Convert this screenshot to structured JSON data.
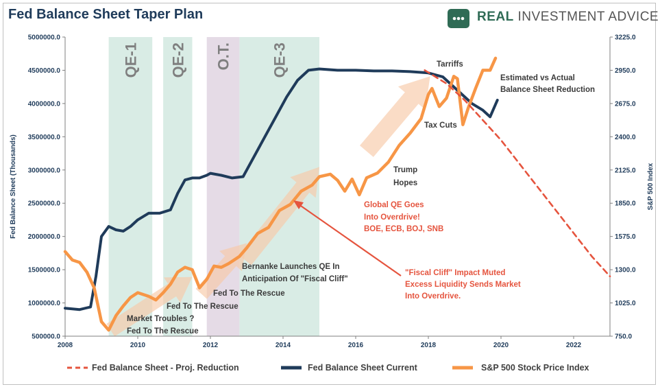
{
  "header": {
    "title": "Fed Balance Sheet Taper Plan",
    "brand_prefix": "REAL",
    "brand_rest": "INVESTMENT ADVICE"
  },
  "chart_data": {
    "type": "line",
    "xlabel": "",
    "ylabel": "Fed Balance Sheet (Thousands)",
    "y2label": "S&P 500 Index",
    "xlim": [
      2008,
      2023
    ],
    "ylim": [
      500000,
      5000000
    ],
    "y2lim": [
      750,
      3225
    ],
    "x_ticks": [
      "2008",
      "2010",
      "2012",
      "2014",
      "2016",
      "2018",
      "2020",
      "2022"
    ],
    "y_ticks": [
      "500000.0",
      "1000000.0",
      "1500000.0",
      "2000000.0",
      "2500000.0",
      "3000000.0",
      "3500000.0",
      "4000000.0",
      "4500000.0",
      "5000000.0"
    ],
    "y2_ticks": [
      "750.0",
      "1025.0",
      "1300.0",
      "1575.0",
      "1850.0",
      "2125.0",
      "2400.0",
      "2675.0",
      "2950.0",
      "3225.0"
    ],
    "shaded_periods": [
      {
        "label": "QE-1",
        "start": 2009.2,
        "end": 2010.4,
        "color": "#d9ece5"
      },
      {
        "label": "QE-2",
        "start": 2010.7,
        "end": 2011.5,
        "color": "#d9ece5"
      },
      {
        "label": "O.T.",
        "start": 2011.9,
        "end": 2012.8,
        "color": "#e5dbe6"
      },
      {
        "label": "QE-3",
        "start": 2012.8,
        "end": 2015.0,
        "color": "#d9ece5"
      }
    ],
    "series": [
      {
        "name": "Fed Balance Sheet - Proj. Reduction",
        "axis": "left",
        "color": "#e5543e",
        "style": "dashed",
        "x": [
          2017.9,
          2018.5,
          2019.0,
          2019.5,
          2020.0,
          2020.5,
          2021.0,
          2021.5,
          2022.0,
          2022.5,
          2023.0
        ],
        "y": [
          4500000,
          4300000,
          4050000,
          3750000,
          3450000,
          3100000,
          2750000,
          2400000,
          2050000,
          1700000,
          1400000
        ]
      },
      {
        "name": "Fed Balance Sheet Current",
        "axis": "left",
        "color": "#1f3b5a",
        "style": "solid",
        "x": [
          2008.0,
          2008.4,
          2008.7,
          2008.85,
          2009.0,
          2009.2,
          2009.4,
          2009.6,
          2009.8,
          2010.0,
          2010.3,
          2010.6,
          2010.9,
          2011.1,
          2011.3,
          2011.5,
          2011.7,
          2011.9,
          2012.0,
          2012.3,
          2012.6,
          2012.9,
          2013.2,
          2013.5,
          2013.8,
          2014.1,
          2014.4,
          2014.7,
          2015.0,
          2015.5,
          2016.0,
          2016.5,
          2017.0,
          2017.5,
          2018.0,
          2018.4,
          2018.8,
          2019.2,
          2019.5,
          2019.7,
          2019.9
        ],
        "y": [
          920000,
          900000,
          940000,
          1400000,
          2000000,
          2150000,
          2100000,
          2080000,
          2150000,
          2250000,
          2350000,
          2350000,
          2400000,
          2650000,
          2850000,
          2880000,
          2880000,
          2920000,
          2950000,
          2920000,
          2880000,
          2900000,
          3200000,
          3500000,
          3800000,
          4100000,
          4350000,
          4500000,
          4520000,
          4500000,
          4500000,
          4490000,
          4490000,
          4480000,
          4460000,
          4400000,
          4200000,
          4000000,
          3900000,
          3800000,
          4050000
        ]
      },
      {
        "name": "S&P 500 Stock Price Index",
        "axis": "right",
        "color": "#f79646",
        "style": "solid",
        "x": [
          2008.0,
          2008.2,
          2008.4,
          2008.6,
          2008.8,
          2009.0,
          2009.2,
          2009.4,
          2009.6,
          2009.8,
          2010.0,
          2010.3,
          2010.5,
          2010.7,
          2010.9,
          2011.1,
          2011.3,
          2011.5,
          2011.7,
          2011.9,
          2012.1,
          2012.3,
          2012.5,
          2012.8,
          2013.0,
          2013.3,
          2013.6,
          2013.9,
          2014.2,
          2014.5,
          2014.8,
          2015.0,
          2015.3,
          2015.5,
          2015.7,
          2015.9,
          2016.1,
          2016.3,
          2016.6,
          2016.9,
          2017.2,
          2017.5,
          2017.8,
          2018.0,
          2018.1,
          2018.3,
          2018.5,
          2018.7,
          2018.8,
          2018.95,
          2019.1,
          2019.3,
          2019.5,
          2019.7,
          2019.85
        ],
        "y": [
          1450,
          1380,
          1360,
          1280,
          1150,
          870,
          800,
          920,
          1000,
          1070,
          1110,
          1080,
          1050,
          1110,
          1180,
          1280,
          1320,
          1300,
          1150,
          1220,
          1330,
          1320,
          1350,
          1410,
          1480,
          1600,
          1650,
          1790,
          1840,
          1950,
          2000,
          2070,
          2090,
          2040,
          1950,
          2050,
          1920,
          2060,
          2100,
          2190,
          2330,
          2430,
          2550,
          2750,
          2800,
          2650,
          2720,
          2900,
          2880,
          2500,
          2640,
          2800,
          2950,
          2950,
          3050
        ]
      }
    ],
    "annotations": [
      {
        "text": "Tarriffs",
        "color": "dark"
      },
      {
        "text": "Estimated vs Actual",
        "color": "dark"
      },
      {
        "text": "Balance Sheet Reduction",
        "color": "dark"
      },
      {
        "text": "Tax Cuts",
        "color": "dark"
      },
      {
        "text": "Trump",
        "color": "dark"
      },
      {
        "text": "Hopes",
        "color": "dark"
      },
      {
        "text": "Global QE Goes",
        "color": "red"
      },
      {
        "text": "Into Overdrive!",
        "color": "red"
      },
      {
        "text": "BOE, ECB, BOJ, SNB",
        "color": "red"
      },
      {
        "text": "\"Fiscal Cliff\" Impact Muted",
        "color": "red"
      },
      {
        "text": "Excess Liquidity Sends Market",
        "color": "red"
      },
      {
        "text": "Into Overdrive.",
        "color": "red"
      },
      {
        "text": "Bernanke Launches QE In",
        "color": "dark"
      },
      {
        "text": "Anticipation Of \"Fiscal Cliff\"",
        "color": "dark"
      },
      {
        "text": "Fed To The Rescue",
        "color": "dark"
      },
      {
        "text": "Fed To The Rescue",
        "color": "dark"
      },
      {
        "text": "Market Troubles ?",
        "color": "dark"
      },
      {
        "text": "Fed To The Rescue",
        "color": "dark"
      }
    ],
    "legend_position": "bottom",
    "grid": false
  }
}
